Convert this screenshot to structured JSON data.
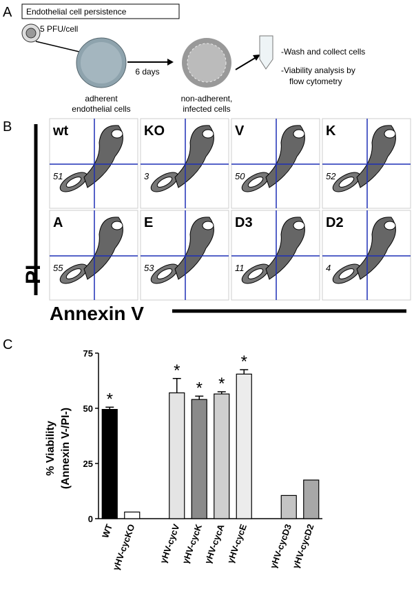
{
  "panel_a": {
    "label": "A",
    "title": "Endothelial cell persistence",
    "dose": "5 PFU/cell",
    "interval": "6 days",
    "adherent": [
      "adherent",
      "endothelial cells"
    ],
    "non_adherent": [
      "non-adherent,",
      "infected cells"
    ],
    "steps": [
      "-Wash and collect cells",
      "-Viability analysis by",
      "flow cytometry"
    ]
  },
  "panel_b": {
    "label": "B",
    "y_label": "PI",
    "x_label": "Annexin V",
    "plots": [
      {
        "name": "wt",
        "value": 51
      },
      {
        "name": "KO",
        "value": 3
      },
      {
        "name": "V",
        "value": 50
      },
      {
        "name": "K",
        "value": 52
      },
      {
        "name": "A",
        "value": 55
      },
      {
        "name": "E",
        "value": 53
      },
      {
        "name": "D3",
        "value": 11
      },
      {
        "name": "D2",
        "value": 4
      }
    ]
  },
  "chart_data": {
    "type": "bar",
    "panel_label": "C",
    "y_label": [
      "% Viability",
      "(Annexin V-/PI-)"
    ],
    "categories": [
      "WT",
      "γHV-cycKO",
      null,
      "γHV-cycV",
      "γHV-cycK",
      "γHV-cycA",
      "γHV-cycE",
      null,
      "γHV-cycD3",
      "γHV-cycD2"
    ],
    "values": [
      49.5,
      3,
      null,
      57,
      54,
      56.5,
      65.5,
      null,
      10.5,
      17.5
    ],
    "errors": [
      1,
      null,
      null,
      6.5,
      1.5,
      1,
      2,
      null,
      null,
      null
    ],
    "significance": [
      "*",
      null,
      null,
      "*",
      "*",
      "*",
      "*",
      null,
      null,
      null
    ],
    "colors": [
      "#000000",
      "#ffffff",
      null,
      "#e4e4e4",
      "#8a8a8a",
      "#cfcfcf",
      "#ececec",
      null,
      "#c4c4c4",
      "#a8a8a8"
    ],
    "ylim": [
      0,
      75
    ],
    "yticks": [
      0,
      25,
      50,
      75
    ]
  }
}
